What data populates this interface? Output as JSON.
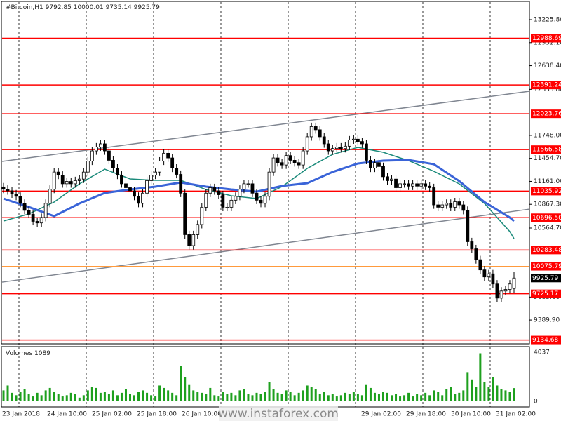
{
  "chart_data": {
    "type": "candlestick",
    "title": "#Bitcoin,H1",
    "ylim": [
      9086,
      13450
    ],
    "yticks": [
      {
        "value": 13225.8,
        "label": "13225.80"
      },
      {
        "value": 12932.1,
        "label": "12932.10"
      },
      {
        "value": 12638.4,
        "label": "12638.40"
      },
      {
        "value": 12335.8,
        "label": "12335.80"
      },
      {
        "value": 11748,
        "label": "11748.00"
      },
      {
        "value": 11454.7,
        "label": "11454.70"
      },
      {
        "value": 11161,
        "label": "11161.00"
      },
      {
        "value": 10867.3,
        "label": "10867.30"
      },
      {
        "value": 10564.7,
        "label": "10564.70"
      },
      {
        "value": 9683.6,
        "label": "9683.60"
      },
      {
        "value": 9389.9,
        "label": "9389.90"
      }
    ],
    "open": [
      11090,
      11060,
      11040,
      11000,
      10970,
      10880,
      10790,
      10740,
      10650,
      10630,
      10700,
      10880,
      11060,
      11280,
      11240,
      11130,
      11160,
      11130,
      11170,
      11190,
      11280,
      11420,
      11550,
      11600,
      11640,
      11550,
      11430,
      11330,
      11240,
      11130,
      11080,
      11040,
      10970,
      10880,
      11010,
      11170,
      11240,
      11280,
      11420,
      11520,
      11460,
      11330,
      11250,
      11010,
      10480,
      10340,
      10480,
      10610,
      10830,
      11010,
      11080,
      11040,
      10990,
      10830,
      10830,
      10920,
      10970,
      11060,
      11130,
      11130,
      11010,
      10920,
      10880,
      10970,
      11280,
      11460,
      11400,
      11370,
      11490,
      11430,
      11400,
      11370,
      11550,
      11730,
      11860,
      11820,
      11730,
      11640,
      11550,
      11580,
      11600,
      11580,
      11610,
      11690,
      11700,
      11670,
      11640,
      11430,
      11330,
      11400,
      11350,
      11220,
      11170,
      11190,
      11080,
      11130,
      11130,
      11100,
      11130,
      11100,
      11130,
      11100,
      11080,
      10860,
      10830,
      10860,
      10880,
      10830,
      10900,
      10860,
      10790,
      10390,
      10300,
      10160,
      10030,
      9940,
      9980,
      9850,
      9670,
      9760,
      9780,
      9792.85
    ],
    "high": [
      11140,
      11110,
      11090,
      11050,
      11020,
      10930,
      10840,
      10790,
      10700,
      10750,
      10930,
      11110,
      11330,
      11330,
      11290,
      11210,
      11210,
      11220,
      11240,
      11330,
      11470,
      11600,
      11650,
      11690,
      11690,
      11600,
      11480,
      11380,
      11290,
      11180,
      11130,
      11090,
      11020,
      11060,
      11220,
      11290,
      11330,
      11470,
      11570,
      11570,
      11510,
      11380,
      11300,
      11060,
      10530,
      10530,
      10660,
      10880,
      11060,
      11130,
      11130,
      11090,
      11040,
      10880,
      10970,
      11020,
      11110,
      11180,
      11180,
      11180,
      11060,
      10970,
      11020,
      11330,
      11510,
      11510,
      11450,
      11540,
      11540,
      11480,
      11450,
      11600,
      11780,
      11910,
      11910,
      11870,
      11780,
      11690,
      11630,
      11650,
      11650,
      11660,
      11740,
      11750,
      11750,
      11720,
      11690,
      11480,
      11450,
      11450,
      11400,
      11270,
      11240,
      11240,
      11180,
      11180,
      11180,
      11180,
      11180,
      11180,
      11180,
      11150,
      11130,
      10910,
      10910,
      10930,
      10930,
      10950,
      10950,
      10910,
      10840,
      10440,
      10350,
      10210,
      10080,
      10030,
      10030,
      9900,
      9810,
      9830,
      9900,
      10000.01
    ],
    "low": [
      11010,
      10990,
      10950,
      10920,
      10830,
      10740,
      10690,
      10600,
      10580,
      10580,
      10650,
      10830,
      11010,
      11190,
      11080,
      11080,
      11080,
      11080,
      11120,
      11140,
      11230,
      11370,
      11500,
      11550,
      11500,
      11380,
      11280,
      11190,
      11080,
      11030,
      10990,
      10920,
      10830,
      10830,
      10960,
      11120,
      11190,
      11230,
      11370,
      11410,
      11280,
      11200,
      10960,
      10430,
      10290,
      10290,
      10430,
      10560,
      10780,
      10960,
      10990,
      10940,
      10780,
      10780,
      10780,
      10870,
      10920,
      11010,
      11080,
      10960,
      10870,
      10830,
      10830,
      10920,
      11230,
      11350,
      11320,
      11320,
      11380,
      11350,
      11320,
      11320,
      11500,
      11680,
      11770,
      11680,
      11590,
      11500,
      11500,
      11530,
      11530,
      11530,
      11560,
      11640,
      11620,
      11590,
      11380,
      11280,
      11280,
      11300,
      11170,
      11120,
      11120,
      11030,
      11030,
      11080,
      11050,
      11050,
      11050,
      11050,
      11050,
      11030,
      10810,
      10780,
      10780,
      10810,
      10780,
      10780,
      10810,
      10740,
      10340,
      10250,
      10110,
      9980,
      9890,
      9890,
      9800,
      9620,
      9620,
      9710,
      9730,
      9735.14
    ],
    "close": [
      11060,
      11040,
      11000,
      10970,
      10880,
      10790,
      10740,
      10650,
      10630,
      10700,
      10880,
      11060,
      11280,
      11240,
      11130,
      11160,
      11130,
      11170,
      11190,
      11280,
      11420,
      11550,
      11600,
      11640,
      11550,
      11430,
      11330,
      11240,
      11130,
      11080,
      11040,
      10970,
      10880,
      11010,
      11170,
      11240,
      11280,
      11420,
      11520,
      11460,
      11330,
      11250,
      11010,
      10480,
      10340,
      10480,
      10610,
      10830,
      11010,
      11080,
      11040,
      10990,
      10830,
      10830,
      10920,
      10970,
      11060,
      11130,
      11130,
      11010,
      10920,
      10880,
      10970,
      11280,
      11460,
      11400,
      11370,
      11490,
      11430,
      11400,
      11370,
      11550,
      11730,
      11860,
      11820,
      11730,
      11640,
      11550,
      11580,
      11600,
      11580,
      11610,
      11690,
      11700,
      11670,
      11640,
      11430,
      11330,
      11400,
      11350,
      11220,
      11170,
      11190,
      11080,
      11130,
      11130,
      11100,
      11130,
      11100,
      11130,
      11100,
      11080,
      10860,
      10830,
      10860,
      10880,
      10830,
      10900,
      10860,
      10790,
      10390,
      10300,
      10160,
      10030,
      9940,
      9980,
      9850,
      9670,
      9760,
      9780,
      9850,
      9925.79
    ],
    "up_color": "#ffffff",
    "down_color": "#000000",
    "moving_averages": [
      {
        "color": "#1a8a7a",
        "x": [
          0,
          6,
          12,
          18,
          24,
          30,
          36,
          42,
          48,
          54,
          60,
          66,
          72,
          78,
          84,
          90,
          96,
          102,
          108,
          114,
          120,
          121
        ],
        "values": [
          10654,
          10744,
          10896,
          11129,
          11317,
          11192,
          11174,
          11174,
          11057,
          10977,
          10941,
          11093,
          11326,
          11505,
          11595,
          11532,
          11425,
          11290,
          11129,
          10878,
          10520,
          10430
        ]
      },
      {
        "color": "#3a64d8",
        "x": [
          0,
          6,
          12,
          18,
          24,
          30,
          36,
          42,
          48,
          54,
          60,
          66,
          72,
          78,
          84,
          90,
          96,
          102,
          108,
          114,
          120,
          121
        ],
        "values": [
          10941,
          10833,
          10717,
          10878,
          11013,
          11057,
          11093,
          11147,
          11093,
          11057,
          11030,
          11102,
          11138,
          11281,
          11389,
          11425,
          11434,
          11380,
          11165,
          10896,
          10699,
          10654
        ]
      }
    ],
    "trendlines": [
      {
        "color": "#7f8590",
        "values": [
          11416,
          12312
        ]
      },
      {
        "color": "#7f8590",
        "values": [
          9874,
          10806
        ]
      }
    ],
    "levels": [
      {
        "value": 12988.69,
        "color": "#ff0000"
      },
      {
        "value": 12391.24,
        "color": "#ff0000"
      },
      {
        "value": 12023.76,
        "color": "#ff0000"
      },
      {
        "value": 11566.58,
        "color": "#ff0000"
      },
      {
        "value": 11035.92,
        "color": "#ff0000"
      },
      {
        "value": 10696.5,
        "label": "10696.50",
        "color": "#ff0000"
      },
      {
        "value": 10283.48,
        "color": "#ff0000"
      },
      {
        "value": 10075.79,
        "color": "#ff9a3c"
      },
      {
        "value": 9725.17,
        "color": "#ff0000"
      },
      {
        "value": 9134.68,
        "color": "#ff0000"
      }
    ],
    "x_labels": [
      "23 Jan 2018",
      "24 Jan 10:00",
      "25 Jan 02:00",
      "25 Jan 18:00",
      "26 Jan 10:00",
      null,
      null,
      null,
      "29 Jan 02:00",
      "29 Jan 18:00",
      "30 Jan 10:00",
      "31 Jan 02:00"
    ],
    "volume": {
      "title": "Volumes",
      "color": "#1ea01e",
      "ylim": [
        0,
        4037
      ],
      "yticks": [
        0,
        4037
      ],
      "values": [
        900,
        1300,
        700,
        500,
        800,
        1000,
        600,
        400,
        700,
        500,
        900,
        1100,
        800,
        600,
        400,
        500,
        700,
        600,
        300,
        500,
        900,
        1200,
        1100,
        700,
        800,
        600,
        900,
        500,
        700,
        1000,
        600,
        500,
        800,
        900,
        700,
        500,
        400,
        1300,
        1100,
        900,
        700,
        500,
        2900,
        2000,
        1400,
        900,
        800,
        700,
        600,
        1100,
        500,
        400,
        800,
        600,
        700,
        500,
        900,
        1000,
        600,
        500,
        700,
        600,
        800,
        1600,
        1000,
        700,
        600,
        900,
        800,
        500,
        700,
        900,
        1300,
        1200,
        1000,
        600,
        800,
        500,
        600,
        400,
        500,
        700,
        600,
        800,
        600,
        500,
        1400,
        1100,
        700,
        600,
        800,
        700,
        500,
        600,
        400,
        500,
        700,
        400,
        600,
        500,
        700,
        500,
        900,
        800,
        500,
        1000,
        1200,
        600,
        700,
        900,
        2400,
        1800,
        1200,
        3950,
        1600,
        1200,
        2000,
        1300,
        1000,
        900,
        800,
        1089
      ]
    },
    "watermark": "www.instaforex.com"
  }
}
